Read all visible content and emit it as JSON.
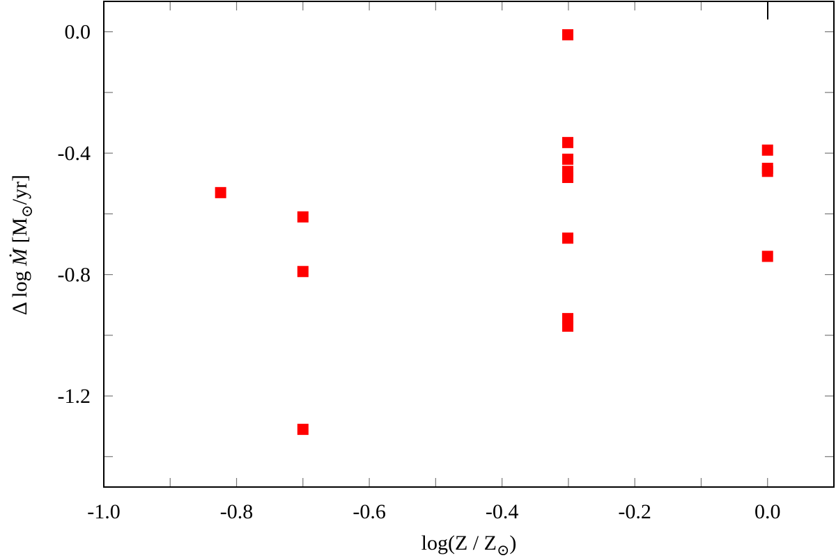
{
  "chart_data": {
    "type": "scatter",
    "xlabel": {
      "prefix": "log(Z / Z",
      "sub": "⊙",
      "suffix": ")"
    },
    "ylabel": {
      "prefix": "Δ log ",
      "mdot": "Ṁ",
      "unit_open": " [M",
      "unit_sub": "⊙",
      "unit_close": "/yr]"
    },
    "xlim": [
      -1.0,
      0.1
    ],
    "ylim": [
      -1.5,
      0.1
    ],
    "x_ticks": [
      -1.0,
      -0.8,
      -0.6,
      -0.4,
      -0.2,
      0.0
    ],
    "x_tick_labels": [
      "-1.0",
      "-0.8",
      "-0.6",
      "-0.4",
      "-0.2",
      "0.0"
    ],
    "x_minor_ticks": [
      -0.9,
      -0.7,
      -0.5,
      -0.3,
      -0.1
    ],
    "y_ticks": [
      0.0,
      -0.4,
      -0.8,
      -1.2
    ],
    "y_tick_labels": [
      "0.0",
      "-0.4",
      "-0.8",
      "-1.2"
    ],
    "y_minor_ticks": [
      -0.2,
      -0.6,
      -1.0,
      -1.4
    ],
    "grid": false,
    "marker": "square",
    "marker_color": "#ff0000",
    "points": [
      {
        "x": -0.824,
        "y": -0.53
      },
      {
        "x": -0.7,
        "y": -0.61
      },
      {
        "x": -0.7,
        "y": -0.79
      },
      {
        "x": -0.7,
        "y": -1.31
      },
      {
        "x": -0.301,
        "y": -0.01
      },
      {
        "x": -0.301,
        "y": -0.365
      },
      {
        "x": -0.301,
        "y": -0.42
      },
      {
        "x": -0.301,
        "y": -0.46
      },
      {
        "x": -0.301,
        "y": -0.48
      },
      {
        "x": -0.301,
        "y": -0.68
      },
      {
        "x": -0.301,
        "y": -0.945
      },
      {
        "x": -0.301,
        "y": -0.97
      },
      {
        "x": 0.0,
        "y": -0.39
      },
      {
        "x": 0.0,
        "y": -0.45
      },
      {
        "x": 0.0,
        "y": -0.46
      },
      {
        "x": 0.0,
        "y": -0.74
      }
    ]
  }
}
